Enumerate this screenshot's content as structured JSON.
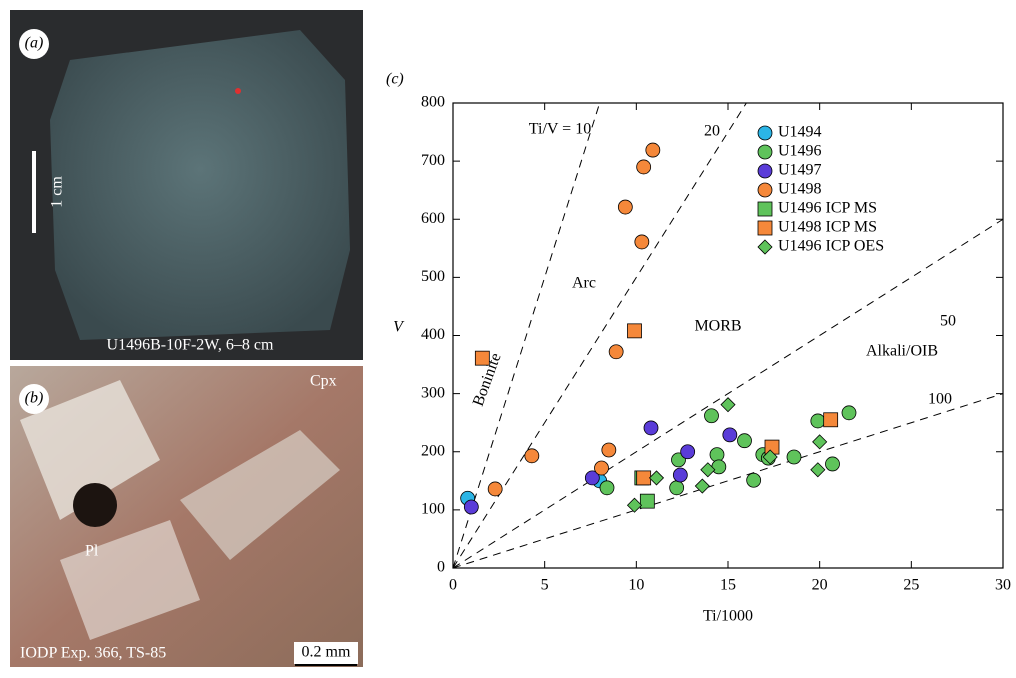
{
  "panels": {
    "a": {
      "letter": "(a)",
      "caption": "U1496B-10F-2W, 6–8 cm",
      "scale": "1 cm"
    },
    "b": {
      "letter": "(b)",
      "label_cpx": "Cpx",
      "label_pl": "Pl",
      "caption": "IODP Exp. 366, TS-85",
      "scale": "0.2 mm"
    }
  },
  "chart_data": {
    "type": "scatter",
    "panel_letter": "(c)",
    "x_label": "Ti/1000",
    "y_label": "V",
    "xlim": [
      0,
      30
    ],
    "ylim": [
      0,
      800
    ],
    "xticks": [
      0,
      5,
      10,
      15,
      20,
      25,
      30
    ],
    "yticks": [
      0,
      100,
      200,
      300,
      400,
      500,
      600,
      700,
      800
    ],
    "ratio_lines": [
      {
        "ratio": 10,
        "label": "Ti/V = 10"
      },
      {
        "ratio": 20,
        "label": "20"
      },
      {
        "ratio": 50,
        "label": "50"
      },
      {
        "ratio": 100,
        "label": "100"
      }
    ],
    "annotations": [
      "Boninite",
      "Arc",
      "MORB",
      "Alkali/OIB"
    ],
    "series": [
      {
        "name": "U1494",
        "marker": "circle",
        "color": "#2bb5e6",
        "x": [
          0.8,
          8.0
        ],
        "y": [
          120,
          150
        ]
      },
      {
        "name": "U1496",
        "marker": "circle",
        "color": "#5fc35b",
        "x": [
          8.4,
          12.2,
          12.3,
          14.1,
          14.4,
          14.5,
          15.9,
          16.4,
          16.9,
          17.2,
          18.6,
          19.9,
          20.7,
          21.6
        ],
        "y": [
          138,
          138,
          186,
          262,
          195,
          174,
          219,
          151,
          195,
          189,
          191,
          253,
          179,
          267
        ]
      },
      {
        "name": "U1497",
        "marker": "circle",
        "color": "#5a3cd8",
        "x": [
          1.0,
          7.6,
          10.8,
          12.4,
          12.8,
          15.1
        ],
        "y": [
          105,
          155,
          241,
          160,
          200,
          229
        ]
      },
      {
        "name": "U1498",
        "marker": "circle",
        "color": "#f5883a",
        "x": [
          10.9,
          10.4,
          9.4,
          10.3,
          8.9,
          4.3,
          2.3,
          8.1,
          8.5
        ],
        "y": [
          719,
          690,
          621,
          561,
          372,
          193,
          136,
          172,
          203
        ]
      },
      {
        "name": "U1496 ICP MS",
        "marker": "square",
        "color": "#5fc35b",
        "x": [
          10.3,
          10.6
        ],
        "y": [
          155,
          115
        ]
      },
      {
        "name": "U1498 ICP MS",
        "marker": "square",
        "color": "#f5883a",
        "x": [
          1.6,
          9.9,
          10.4,
          17.4,
          20.6
        ],
        "y": [
          361,
          408,
          155,
          208,
          255
        ]
      },
      {
        "name": "U1496 ICP OES",
        "marker": "diamond",
        "color": "#5fc35b",
        "x": [
          9.9,
          11.1,
          13.6,
          13.9,
          15.0,
          17.3,
          20.0,
          19.9
        ],
        "y": [
          108,
          155,
          141,
          169,
          281,
          191,
          217,
          169
        ]
      }
    ]
  }
}
